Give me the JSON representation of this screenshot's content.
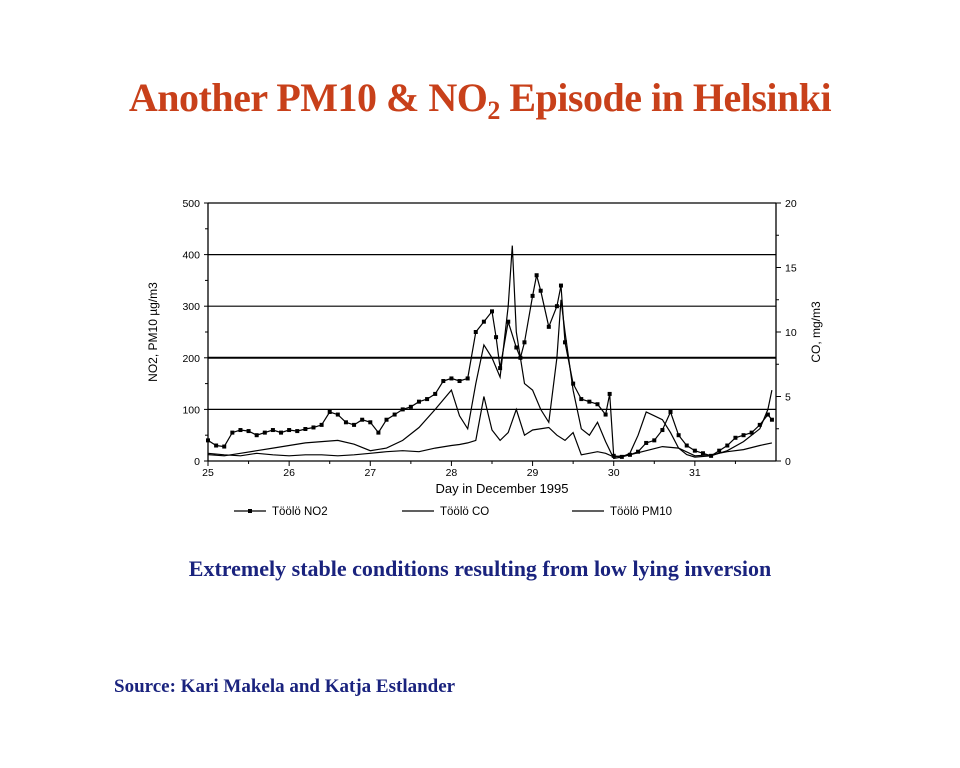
{
  "slide": {
    "title_main": "Another PM10 & NO",
    "title_sub": "2",
    "title_end": " Episode in Helsinki",
    "caption": "Extremely stable conditions resulting from low lying inversion",
    "source": "Source: Kari Makela and Katja Estlander"
  },
  "colors": {
    "title": "#c8401a",
    "caption": "#1a237e",
    "line": "#000000"
  },
  "chart_data": {
    "type": "line",
    "xlabel": "Day in December 1995",
    "ylabel_left": "NO2, PM10 µg/m3",
    "ylabel_right": "CO, mg/m3",
    "xlim": [
      25,
      32
    ],
    "ylim_left": [
      0,
      500
    ],
    "ylim_right": [
      0,
      20
    ],
    "x_ticks": [
      "25",
      "26",
      "27",
      "28",
      "29",
      "30",
      "31"
    ],
    "y_ticks_left": [
      "0",
      "100",
      "200",
      "300",
      "400",
      "500"
    ],
    "y_ticks_right": [
      "0",
      "5",
      "10",
      "15",
      "20"
    ],
    "gridlines_y": [
      100,
      200,
      300,
      400,
      500
    ],
    "legend_position": "bottom",
    "series": [
      {
        "name": "Töölö NO2",
        "axis": "left",
        "marker": "square",
        "x": [
          25.0,
          25.1,
          25.2,
          25.3,
          25.4,
          25.5,
          25.6,
          25.7,
          25.8,
          25.9,
          26.0,
          26.1,
          26.2,
          26.3,
          26.4,
          26.5,
          26.6,
          26.7,
          26.8,
          26.9,
          27.0,
          27.1,
          27.2,
          27.3,
          27.4,
          27.5,
          27.6,
          27.7,
          27.8,
          27.9,
          28.0,
          28.1,
          28.2,
          28.3,
          28.4,
          28.5,
          28.55,
          28.6,
          28.7,
          28.8,
          28.85,
          28.9,
          29.0,
          29.05,
          29.1,
          29.2,
          29.3,
          29.35,
          29.4,
          29.5,
          29.6,
          29.7,
          29.8,
          29.9,
          29.95,
          30.0,
          30.1,
          30.2,
          30.3,
          30.4,
          30.5,
          30.6,
          30.7,
          30.8,
          30.9,
          31.0,
          31.1,
          31.2,
          31.3,
          31.4,
          31.5,
          31.6,
          31.7,
          31.8,
          31.9,
          31.95
        ],
        "y": [
          40,
          30,
          28,
          55,
          60,
          58,
          50,
          55,
          60,
          55,
          60,
          58,
          62,
          65,
          70,
          95,
          90,
          75,
          70,
          80,
          75,
          55,
          80,
          90,
          100,
          105,
          115,
          120,
          130,
          155,
          160,
          155,
          160,
          250,
          270,
          290,
          240,
          180,
          270,
          220,
          200,
          230,
          320,
          360,
          330,
          260,
          300,
          340,
          230,
          150,
          120,
          115,
          110,
          90,
          130,
          10,
          8,
          12,
          18,
          35,
          40,
          60,
          95,
          50,
          30,
          20,
          15,
          10,
          20,
          30,
          45,
          50,
          55,
          70,
          90,
          80
        ]
      },
      {
        "name": "Töölö CO",
        "axis": "right",
        "marker": "none",
        "x": [
          25.0,
          25.2,
          25.4,
          25.6,
          25.8,
          26.0,
          26.2,
          26.4,
          26.6,
          26.8,
          27.0,
          27.2,
          27.4,
          27.6,
          27.8,
          28.0,
          28.1,
          28.2,
          28.3,
          28.4,
          28.5,
          28.6,
          28.7,
          28.75,
          28.8,
          28.9,
          29.0,
          29.1,
          29.2,
          29.3,
          29.35,
          29.4,
          29.5,
          29.6,
          29.7,
          29.8,
          29.9,
          30.0,
          30.1,
          30.2,
          30.3,
          30.4,
          30.5,
          30.6,
          30.7,
          30.8,
          30.9,
          31.0,
          31.2,
          31.4,
          31.6,
          31.8,
          31.9,
          31.95
        ],
        "y": [
          0.5,
          0.4,
          0.6,
          0.8,
          1.0,
          1.2,
          1.4,
          1.5,
          1.6,
          1.3,
          0.8,
          1.0,
          1.6,
          2.6,
          4.0,
          5.5,
          3.5,
          2.5,
          6.0,
          9.0,
          8.0,
          6.5,
          12.0,
          16.7,
          10.0,
          6.0,
          5.5,
          4.0,
          3.0,
          8.0,
          12.5,
          10.0,
          5.5,
          2.5,
          2.0,
          3.0,
          1.5,
          0.2,
          0.3,
          0.6,
          2.0,
          3.8,
          3.5,
          3.2,
          2.2,
          1.0,
          0.5,
          0.3,
          0.4,
          0.8,
          1.5,
          2.5,
          4.0,
          5.5
        ]
      },
      {
        "name": "Töölö PM10",
        "axis": "left",
        "marker": "none",
        "x": [
          25.0,
          25.2,
          25.4,
          25.6,
          25.8,
          26.0,
          26.2,
          26.4,
          26.6,
          26.8,
          27.0,
          27.2,
          27.4,
          27.6,
          27.8,
          28.0,
          28.1,
          28.2,
          28.3,
          28.4,
          28.5,
          28.6,
          28.7,
          28.8,
          28.9,
          29.0,
          29.2,
          29.3,
          29.4,
          29.5,
          29.6,
          29.8,
          29.9,
          30.0,
          30.2,
          30.4,
          30.6,
          30.8,
          31.0,
          31.2,
          31.4,
          31.6,
          31.8,
          31.95
        ],
        "y": [
          15,
          12,
          10,
          15,
          12,
          10,
          12,
          12,
          10,
          12,
          15,
          18,
          20,
          18,
          25,
          30,
          32,
          35,
          40,
          125,
          60,
          40,
          55,
          100,
          50,
          60,
          65,
          50,
          40,
          55,
          12,
          18,
          15,
          8,
          12,
          20,
          28,
          25,
          10,
          12,
          18,
          22,
          30,
          35
        ]
      }
    ]
  }
}
